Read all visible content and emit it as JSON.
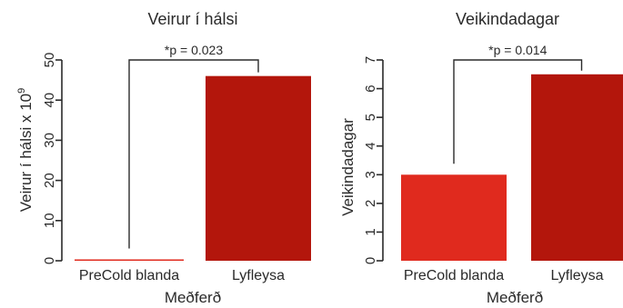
{
  "chart_data": [
    {
      "type": "bar",
      "title": "Veirur í hálsi",
      "xlabel": "Meðferð",
      "ylabel": "Veirur í hálsi x 10",
      "ylabel_exponent": "9",
      "categories": [
        "PreCold blanda",
        "Lyfleysa"
      ],
      "values": [
        0.3,
        46
      ],
      "colors": [
        "#e02a1e",
        "#b3160c"
      ],
      "ylim": [
        0,
        50
      ],
      "yticks": [
        0,
        10,
        20,
        30,
        40,
        50
      ],
      "annotation": "*p = 0.023",
      "grid": false,
      "legend": "none"
    },
    {
      "type": "bar",
      "title": "Veikindadagar",
      "xlabel": "Meðferð",
      "ylabel": "Veikindadagar",
      "categories": [
        "PreCold blanda",
        "Lyfleysa"
      ],
      "values": [
        3,
        6.5
      ],
      "colors": [
        "#e02a1e",
        "#b3160c"
      ],
      "ylim": [
        0,
        7
      ],
      "yticks": [
        0,
        1,
        2,
        3,
        4,
        5,
        6,
        7
      ],
      "annotation": "*p = 0.014",
      "grid": false,
      "legend": "none"
    }
  ]
}
